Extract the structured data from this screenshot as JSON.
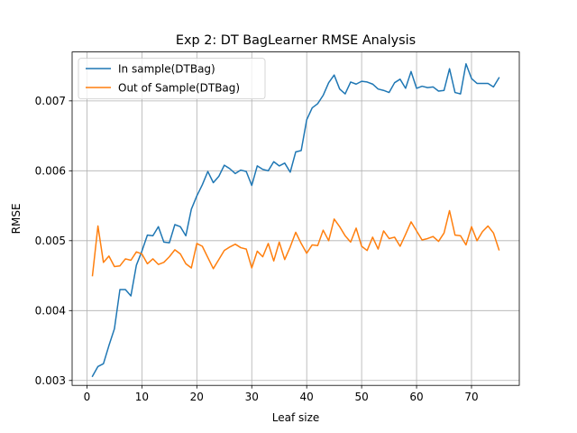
{
  "chart_data": {
    "type": "line",
    "title": "Exp 2: DT BagLearner RMSE Analysis",
    "xlabel": "Leaf size",
    "ylabel": "RMSE",
    "xlim": [
      -2.7,
      78.7
    ],
    "ylim": [
      0.00293,
      0.0077
    ],
    "x_ticks": [
      0,
      10,
      20,
      30,
      40,
      50,
      60,
      70
    ],
    "y_ticks": [
      0.003,
      0.004,
      0.005,
      0.006,
      0.007
    ],
    "y_tick_labels": [
      "0.003",
      "0.004",
      "0.005",
      "0.006",
      "0.007"
    ],
    "grid": true,
    "legend_position": "top-left",
    "x": [
      1,
      2,
      3,
      4,
      5,
      6,
      7,
      8,
      9,
      10,
      11,
      12,
      13,
      14,
      15,
      16,
      17,
      18,
      19,
      20,
      21,
      22,
      23,
      24,
      25,
      26,
      27,
      28,
      29,
      30,
      31,
      32,
      33,
      34,
      35,
      36,
      37,
      38,
      39,
      40,
      41,
      42,
      43,
      44,
      45,
      46,
      47,
      48,
      49,
      50,
      51,
      52,
      53,
      54,
      55,
      56,
      57,
      58,
      59,
      60,
      61,
      62,
      63,
      64,
      65,
      66,
      67,
      68,
      69,
      70,
      71,
      72,
      73,
      74,
      75
    ],
    "series": [
      {
        "name": "In sample(DTBag)",
        "color": "#1f77b4",
        "values": [
          0.00306,
          0.0032,
          0.00324,
          0.0035,
          0.00374,
          0.0043,
          0.0043,
          0.00421,
          0.00465,
          0.00485,
          0.00508,
          0.00507,
          0.0052,
          0.00498,
          0.00497,
          0.00523,
          0.0052,
          0.00507,
          0.00545,
          0.00564,
          0.0058,
          0.00599,
          0.00583,
          0.00592,
          0.00608,
          0.00603,
          0.00596,
          0.00601,
          0.00599,
          0.00579,
          0.00607,
          0.00602,
          0.006,
          0.00613,
          0.00607,
          0.00611,
          0.00598,
          0.00627,
          0.00629,
          0.00673,
          0.0069,
          0.00696,
          0.00708,
          0.00726,
          0.00737,
          0.00717,
          0.0071,
          0.00727,
          0.00724,
          0.00728,
          0.00727,
          0.00724,
          0.00717,
          0.00715,
          0.00712,
          0.00726,
          0.00731,
          0.00718,
          0.00742,
          0.00718,
          0.00721,
          0.00719,
          0.0072,
          0.00714,
          0.00715,
          0.00746,
          0.00712,
          0.0071,
          0.00753,
          0.00732,
          0.00725,
          0.00725,
          0.00725,
          0.0072,
          0.00733
        ]
      },
      {
        "name": "Out of Sample(DTBag)",
        "color": "#ff7f0e",
        "values": [
          0.0045,
          0.00521,
          0.00469,
          0.00478,
          0.00463,
          0.00464,
          0.00474,
          0.00472,
          0.00484,
          0.00481,
          0.00467,
          0.00474,
          0.00466,
          0.00469,
          0.00477,
          0.00487,
          0.00481,
          0.00467,
          0.00461,
          0.00496,
          0.00492,
          0.00476,
          0.0046,
          0.00473,
          0.00486,
          0.00491,
          0.00495,
          0.0049,
          0.00488,
          0.00461,
          0.00485,
          0.00477,
          0.00496,
          0.00471,
          0.00498,
          0.00473,
          0.00491,
          0.00512,
          0.00496,
          0.00482,
          0.00494,
          0.00493,
          0.00515,
          0.005,
          0.00531,
          0.0052,
          0.00507,
          0.00498,
          0.00518,
          0.00492,
          0.00486,
          0.00505,
          0.00488,
          0.00514,
          0.00503,
          0.00505,
          0.00492,
          0.00509,
          0.00527,
          0.00514,
          0.00501,
          0.00503,
          0.00506,
          0.00499,
          0.00511,
          0.00543,
          0.00508,
          0.00507,
          0.00494,
          0.0052,
          0.005,
          0.00513,
          0.00521,
          0.00511,
          0.00487
        ]
      }
    ]
  }
}
